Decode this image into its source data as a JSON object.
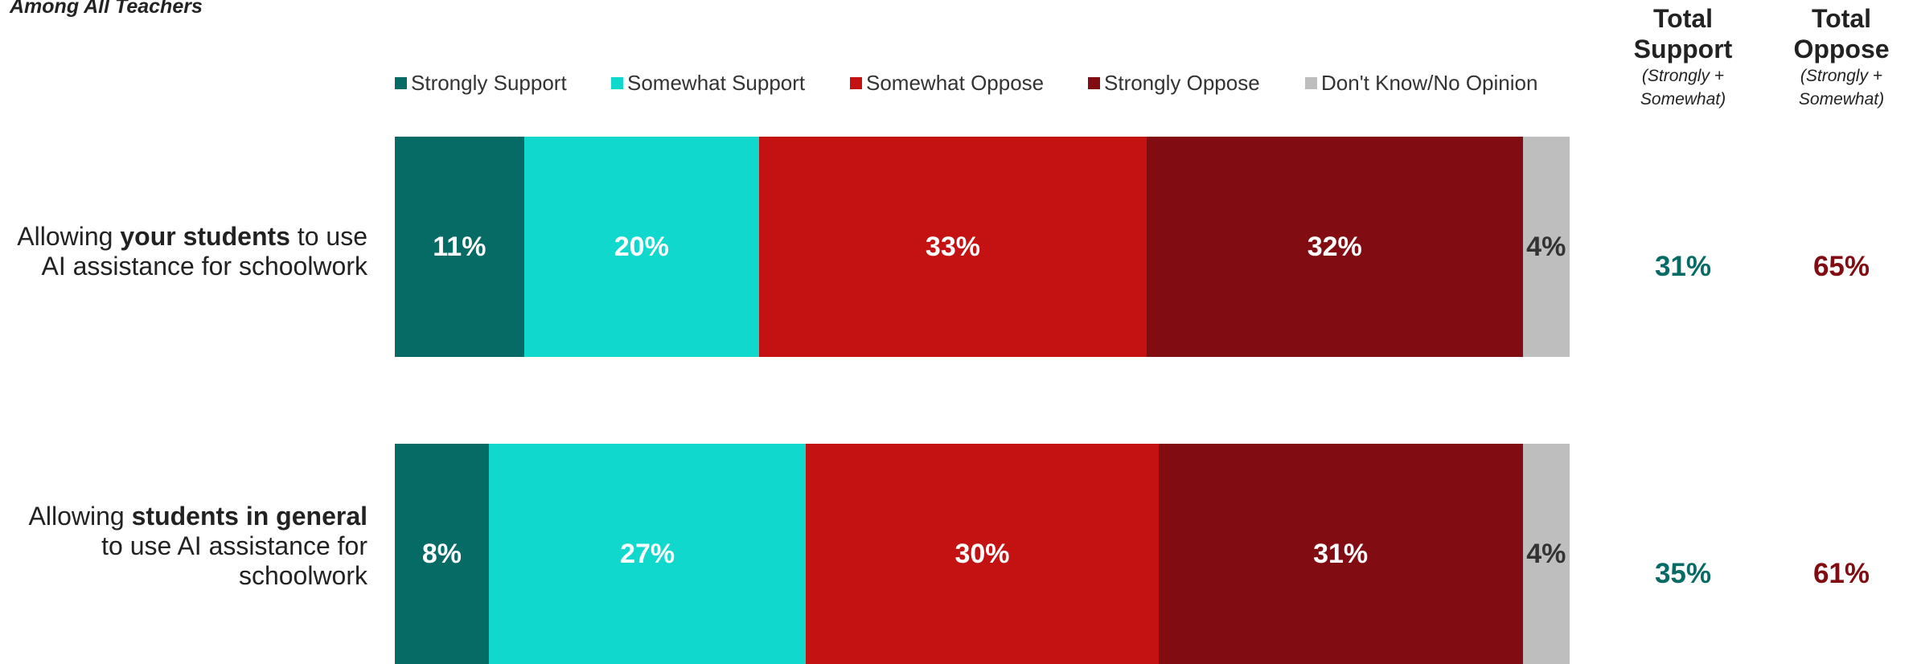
{
  "subtitle": "Among All Teachers",
  "legend": [
    {
      "label": "Strongly Support",
      "color": "#066A65"
    },
    {
      "label": "Somewhat Support",
      "color": "#10D8CC"
    },
    {
      "label": "Somewhat Oppose",
      "color": "#C41212"
    },
    {
      "label": "Strongly Oppose",
      "color": "#810D12"
    },
    {
      "label": "Don't Know/No Opinion",
      "color": "#BEBEBE"
    }
  ],
  "totals_header": {
    "support_title_line1": "Total",
    "support_title_line2": "Support",
    "support_sub_line1": "(Strongly +",
    "support_sub_line2": "Somewhat)",
    "oppose_title_line1": "Total",
    "oppose_title_line2": "Oppose",
    "oppose_sub_line1": "(Strongly +",
    "oppose_sub_line2": "Somewhat)",
    "support_color": "#066A65",
    "oppose_color": "#810D12"
  },
  "rows": [
    {
      "label_pre": "Allowing ",
      "label_bold": "your students",
      "label_post_line1": " to use",
      "label_line2": "AI assistance for schoolwork",
      "label_line3": "",
      "total_support": "31%",
      "total_oppose": "65%"
    },
    {
      "label_pre": "Allowing ",
      "label_bold": "students in general",
      "label_post_line1": "",
      "label_line2": "to use AI assistance for",
      "label_line3": "schoolwork",
      "total_support": "35%",
      "total_oppose": "61%"
    }
  ],
  "chart_data": {
    "type": "bar",
    "orientation": "horizontal-stacked-100",
    "categories": [
      "Allowing your students to use AI assistance for schoolwork",
      "Allowing students in general to use AI assistance for schoolwork"
    ],
    "series": [
      {
        "name": "Strongly Support",
        "values": [
          11,
          8
        ],
        "labels": [
          "11%",
          "8%"
        ]
      },
      {
        "name": "Somewhat Support",
        "values": [
          20,
          27
        ],
        "labels": [
          "20%",
          "27%"
        ]
      },
      {
        "name": "Somewhat Oppose",
        "values": [
          33,
          30
        ],
        "labels": [
          "33%",
          "30%"
        ]
      },
      {
        "name": "Strongly Oppose",
        "values": [
          32,
          31
        ],
        "labels": [
          "32%",
          "31%"
        ]
      },
      {
        "name": "Don't Know/No Opinion",
        "values": [
          4,
          4
        ],
        "labels": [
          "4%",
          "4%"
        ]
      }
    ],
    "legend_position": "top",
    "grid": false
  }
}
